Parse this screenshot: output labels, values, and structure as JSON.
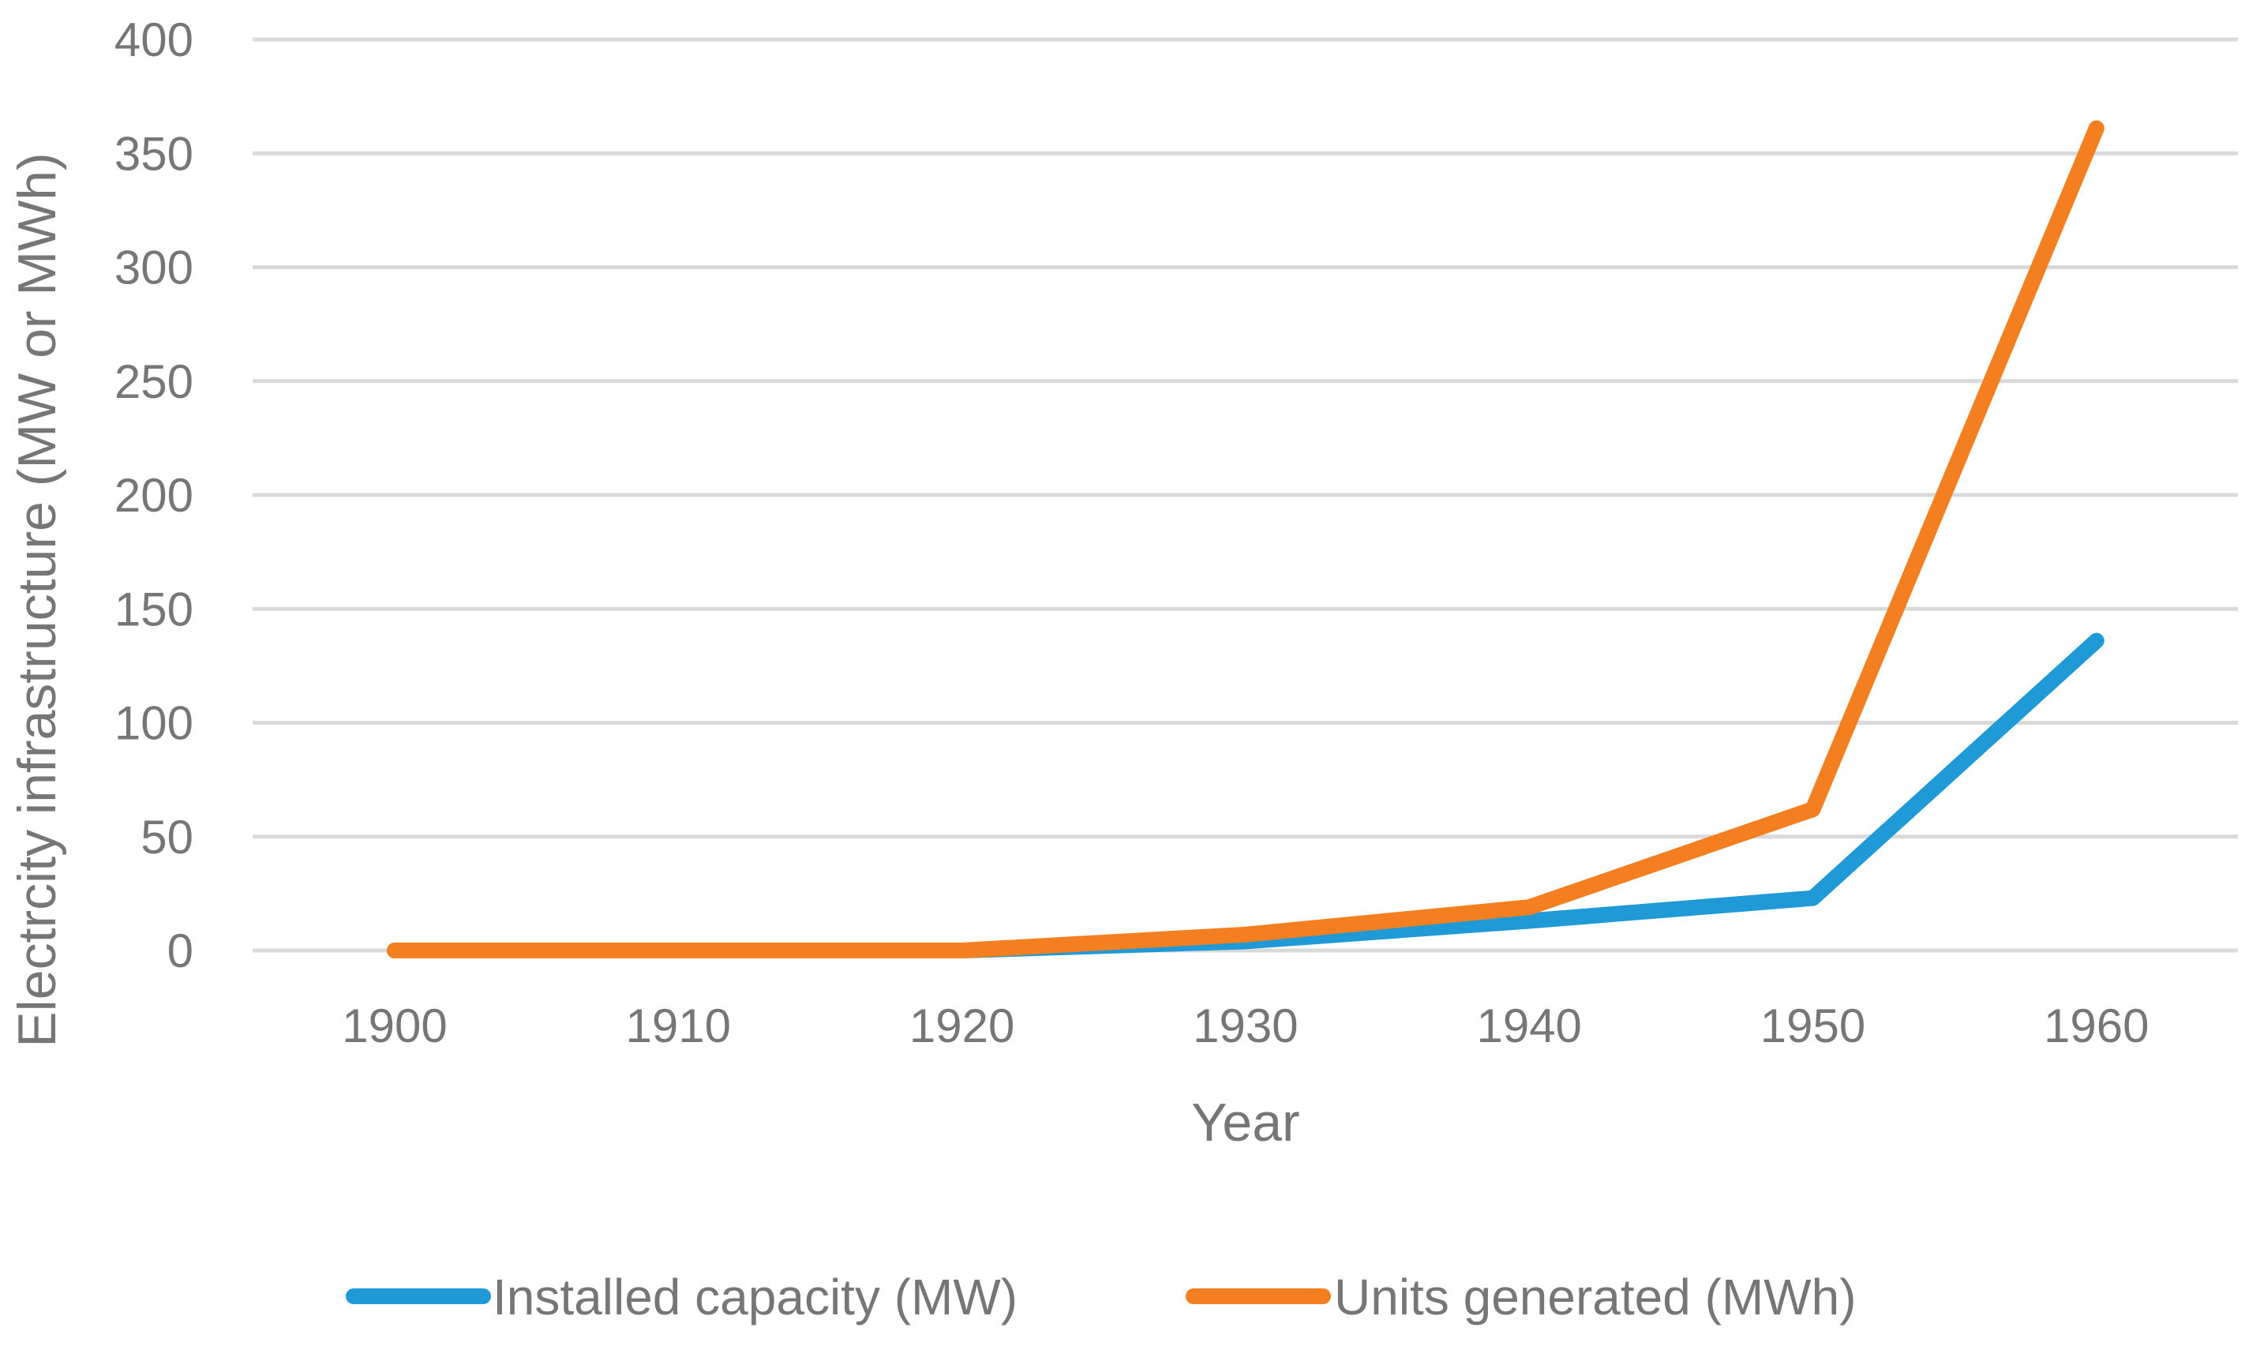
{
  "chart_data": {
    "type": "line",
    "title": "",
    "xlabel": "Year",
    "ylabel": "Electrcity infrastructure (MW or MWh)",
    "categories": [
      "1900",
      "1910",
      "1920",
      "1930",
      "1940",
      "1950",
      "1960"
    ],
    "ylim": [
      0,
      400
    ],
    "yticks": [
      "0",
      "50",
      "100",
      "150",
      "200",
      "250",
      "300",
      "350",
      "400"
    ],
    "grid": true,
    "legend_position": "bottom",
    "series": [
      {
        "name": "Installed capacity (MW)",
        "color": "#1f9ad6",
        "values": [
          0,
          0,
          0,
          4,
          13,
          23,
          136
        ]
      },
      {
        "name": "Units generated (MWh)",
        "color": "#f47f20",
        "values": [
          0,
          0,
          0,
          7,
          19,
          62,
          361
        ]
      }
    ]
  }
}
